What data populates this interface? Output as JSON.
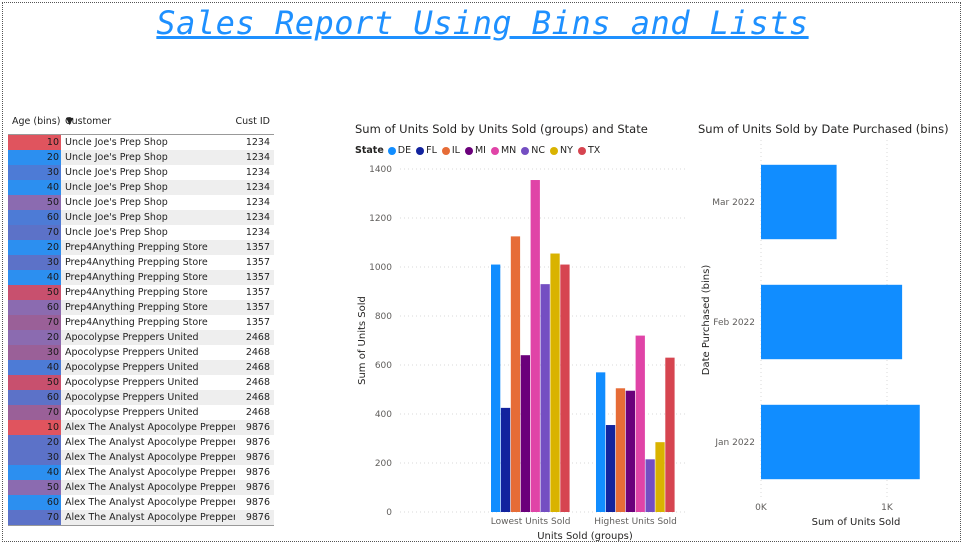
{
  "page_title": "Sales Report Using Bins and Lists",
  "table": {
    "headers": {
      "age": "Age (bins)",
      "customer": "Customer",
      "cust_id": "Cust ID"
    },
    "sort_icon": "sort-descending-icon",
    "rows": [
      {
        "age": "10",
        "customer": "Uncle Joe's Prep Shop",
        "cust_id": "1234",
        "age_color": "#E0545E"
      },
      {
        "age": "20",
        "customer": "Uncle Joe's Prep Shop",
        "cust_id": "1234",
        "age_color": "#2C8FF0"
      },
      {
        "age": "30",
        "customer": "Uncle Joe's Prep Shop",
        "cust_id": "1234",
        "age_color": "#4D7BD6"
      },
      {
        "age": "40",
        "customer": "Uncle Joe's Prep Shop",
        "cust_id": "1234",
        "age_color": "#2C8FF0"
      },
      {
        "age": "50",
        "customer": "Uncle Joe's Prep Shop",
        "cust_id": "1234",
        "age_color": "#8B6BB0"
      },
      {
        "age": "60",
        "customer": "Uncle Joe's Prep Shop",
        "cust_id": "1234",
        "age_color": "#4D7BD6"
      },
      {
        "age": "70",
        "customer": "Uncle Joe's Prep Shop",
        "cust_id": "1234",
        "age_color": "#5C72C8"
      },
      {
        "age": "20",
        "customer": "Prep4Anything Prepping Store",
        "cust_id": "1357",
        "age_color": "#2C8FF0"
      },
      {
        "age": "30",
        "customer": "Prep4Anything Prepping Store",
        "cust_id": "1357",
        "age_color": "#5C72C8"
      },
      {
        "age": "40",
        "customer": "Prep4Anything Prepping Store",
        "cust_id": "1357",
        "age_color": "#2C8FF0"
      },
      {
        "age": "50",
        "customer": "Prep4Anything Prepping Store",
        "cust_id": "1357",
        "age_color": "#C8506E"
      },
      {
        "age": "60",
        "customer": "Prep4Anything Prepping Store",
        "cust_id": "1357",
        "age_color": "#8B6BB0"
      },
      {
        "age": "70",
        "customer": "Prep4Anything Prepping Store",
        "cust_id": "1357",
        "age_color": "#9A6098"
      },
      {
        "age": "20",
        "customer": "Apocolypse Preppers United",
        "cust_id": "2468",
        "age_color": "#8B6BB0"
      },
      {
        "age": "30",
        "customer": "Apocolypse Preppers United",
        "cust_id": "2468",
        "age_color": "#9A6098"
      },
      {
        "age": "40",
        "customer": "Apocolypse Preppers United",
        "cust_id": "2468",
        "age_color": "#4D7BD6"
      },
      {
        "age": "50",
        "customer": "Apocolypse Preppers United",
        "cust_id": "2468",
        "age_color": "#C8506E"
      },
      {
        "age": "60",
        "customer": "Apocolypse Preppers United",
        "cust_id": "2468",
        "age_color": "#5C72C8"
      },
      {
        "age": "70",
        "customer": "Apocolypse Preppers United",
        "cust_id": "2468",
        "age_color": "#9A6098"
      },
      {
        "age": "10",
        "customer": "Alex The Analyst Apocolype Preppers",
        "cust_id": "9876",
        "age_color": "#E0545E"
      },
      {
        "age": "20",
        "customer": "Alex The Analyst Apocolype Preppers",
        "cust_id": "9876",
        "age_color": "#5C72C8"
      },
      {
        "age": "30",
        "customer": "Alex The Analyst Apocolype Preppers",
        "cust_id": "9876",
        "age_color": "#5C72C8"
      },
      {
        "age": "40",
        "customer": "Alex The Analyst Apocolype Preppers",
        "cust_id": "9876",
        "age_color": "#2C8FF0"
      },
      {
        "age": "50",
        "customer": "Alex The Analyst Apocolype Preppers",
        "cust_id": "9876",
        "age_color": "#8B6BB0"
      },
      {
        "age": "60",
        "customer": "Alex The Analyst Apocolype Preppers",
        "cust_id": "9876",
        "age_color": "#2C8FF0"
      },
      {
        "age": "70",
        "customer": "Alex The Analyst Apocolype Preppers",
        "cust_id": "9876",
        "age_color": "#5C72C8"
      }
    ]
  },
  "chart_data": [
    {
      "type": "bar",
      "title": "Sum of Units Sold by Units Sold (groups) and State",
      "legend_title": "State",
      "legend_position": "top-left",
      "xlabel": "Units Sold (groups)",
      "ylabel": "Sum of Units Sold",
      "categories": [
        "Lowest Units Sold",
        "Highest Units Sold"
      ],
      "ylim": [
        0,
        1400
      ],
      "yticks": [
        "0",
        "200",
        "400",
        "600",
        "800",
        "1000",
        "1200",
        "1400"
      ],
      "ytick_values": [
        0,
        200,
        400,
        600,
        800,
        1000,
        1200,
        1400
      ],
      "grid": true,
      "series": [
        {
          "name": "DE",
          "color": "#118DFF",
          "values": [
            1010,
            570
          ]
        },
        {
          "name": "FL",
          "color": "#12239E",
          "values": [
            425,
            355
          ]
        },
        {
          "name": "IL",
          "color": "#E66C37",
          "values": [
            1125,
            505
          ]
        },
        {
          "name": "MI",
          "color": "#6B007B",
          "values": [
            640,
            495
          ]
        },
        {
          "name": "MN",
          "color": "#E044A7",
          "values": [
            1355,
            720
          ]
        },
        {
          "name": "NC",
          "color": "#744EC2",
          "values": [
            930,
            215
          ]
        },
        {
          "name": "NY",
          "color": "#D9B300",
          "values": [
            1055,
            285
          ]
        },
        {
          "name": "TX",
          "color": "#D64550",
          "values": [
            1010,
            630
          ]
        }
      ]
    },
    {
      "type": "bar",
      "orientation": "horizontal",
      "title": "Sum of Units Sold by Date Purchased (bins)",
      "xlabel": "Sum of Units Sold",
      "ylabel": "Date Purchased (bins)",
      "categories": [
        "Mar 2022",
        "Feb 2022",
        "Jan 2022"
      ],
      "values": [
        600,
        1120,
        1260
      ],
      "xlim": [
        0,
        1500
      ],
      "xticks": [
        "0K",
        "1K"
      ],
      "xtick_values": [
        0,
        1000
      ],
      "grid": true,
      "color": "#118DFF"
    }
  ]
}
